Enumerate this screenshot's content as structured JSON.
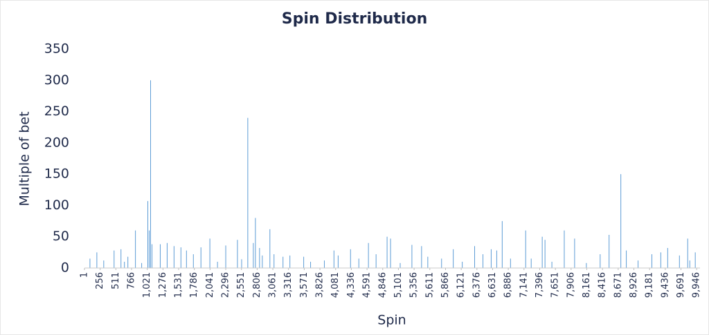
{
  "chart_data": {
    "type": "spike",
    "title": "Spin Distribution",
    "x_label": "Spin",
    "y_label": "Multiple of bet",
    "color": "#5b9bd5",
    "grid": false,
    "x": [
      90,
      202,
      314,
      482,
      594,
      650,
      706,
      829,
      930,
      1030,
      1053,
      1075,
      1098,
      1232,
      1344,
      1456,
      1568,
      1658,
      1770,
      1893,
      2038,
      2162,
      2296,
      2486,
      2554,
      2654,
      2744,
      2778,
      2845,
      2890,
      3013,
      3080,
      3226,
      3338,
      3562,
      3674,
      3898,
      4054,
      4122,
      4323,
      4458,
      4614,
      4738,
      4917,
      4973,
      5130,
      5320,
      5477,
      5578,
      5802,
      5992,
      6138,
      6339,
      6474,
      6608,
      6698,
      6787,
      6922,
      7168,
      7258,
      7437,
      7482,
      7594,
      7795,
      7963,
      8154,
      8378,
      8523,
      8714,
      8803,
      8994,
      9218,
      9363,
      9475,
      9666,
      9800,
      9834,
      9923
    ],
    "values": [
      15,
      25,
      12,
      28,
      30,
      10,
      18,
      60,
      8,
      107,
      60,
      300,
      38,
      38,
      40,
      35,
      33,
      28,
      22,
      33,
      47,
      10,
      36,
      45,
      14,
      240,
      40,
      80,
      32,
      20,
      62,
      22,
      18,
      20,
      18,
      10,
      12,
      28,
      20,
      30,
      15,
      40,
      22,
      50,
      47,
      8,
      37,
      35,
      18,
      15,
      30,
      10,
      35,
      22,
      30,
      28,
      75,
      15,
      60,
      15,
      50,
      45,
      10,
      60,
      47,
      8,
      22,
      53,
      150,
      28,
      12,
      22,
      25,
      32,
      20,
      47,
      12,
      25
    ],
    "xlim": [
      1,
      10000
    ],
    "ylim": [
      0,
      350
    ],
    "yticks": [
      0,
      50,
      100,
      150,
      200,
      250,
      300,
      350
    ],
    "xticks": [
      1,
      256,
      511,
      766,
      {
        "value": 1021,
        "label": "1,021"
      },
      {
        "value": 1276,
        "label": "1,276"
      },
      {
        "value": 1531,
        "label": "1,531"
      },
      {
        "value": 1786,
        "label": "1,786"
      },
      {
        "value": 2041,
        "label": "2,041"
      },
      {
        "value": 2296,
        "label": "2,296"
      },
      {
        "value": 2551,
        "label": "2,551"
      },
      {
        "value": 2806,
        "label": "2,806"
      },
      {
        "value": 3061,
        "label": "3,061"
      },
      {
        "value": 3316,
        "label": "3,316"
      },
      {
        "value": 3571,
        "label": "3,571"
      },
      {
        "value": 3826,
        "label": "3,826"
      },
      {
        "value": 4081,
        "label": "4,081"
      },
      {
        "value": 4336,
        "label": "4,336"
      },
      {
        "value": 4591,
        "label": "4,591"
      },
      {
        "value": 4846,
        "label": "4,846"
      },
      {
        "value": 5101,
        "label": "5,101"
      },
      {
        "value": 5356,
        "label": "5,356"
      },
      {
        "value": 5611,
        "label": "5,611"
      },
      {
        "value": 5866,
        "label": "5,866"
      },
      {
        "value": 6121,
        "label": "6,121"
      },
      {
        "value": 6376,
        "label": "6,376"
      },
      {
        "value": 6631,
        "label": "6,631"
      },
      {
        "value": 6886,
        "label": "6,886"
      },
      {
        "value": 7141,
        "label": "7,141"
      },
      {
        "value": 7396,
        "label": "7,396"
      },
      {
        "value": 7651,
        "label": "7,651"
      },
      {
        "value": 7906,
        "label": "7,906"
      },
      {
        "value": 8161,
        "label": "8,161"
      },
      {
        "value": 8416,
        "label": "8,416"
      },
      {
        "value": 8671,
        "label": "8,671"
      },
      {
        "value": 8926,
        "label": "8,926"
      },
      {
        "value": 9181,
        "label": "9,181"
      },
      {
        "value": 9436,
        "label": "9,436"
      },
      {
        "value": 9691,
        "label": "9,691"
      },
      {
        "value": 9946,
        "label": "9,946"
      }
    ]
  }
}
